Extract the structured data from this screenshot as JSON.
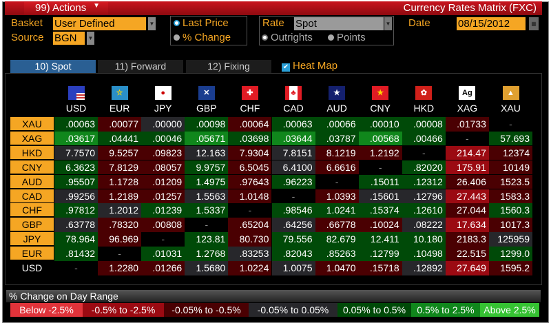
{
  "titlebar": {
    "actions": "99) Actions",
    "title": "Currency Rates Matrix (FXC)"
  },
  "controls": {
    "basket_label": "Basket",
    "basket_value": "User Defined",
    "source_label": "Source",
    "source_value": "BGN",
    "last_price": "Last Price",
    "pct_change": "% Change",
    "rate_label": "Rate",
    "rate_value": "Spot",
    "outrights": "Outrights",
    "points": "Points",
    "date_label": "Date",
    "date_value": "08/15/2012",
    "selected_display": "Last Price",
    "selected_quote": "Outrights"
  },
  "tabs": [
    {
      "label": "10) Spot",
      "active": true
    },
    {
      "label": "11) Forward",
      "active": false
    },
    {
      "label": "12) Fixing",
      "active": false
    }
  ],
  "heatmap": {
    "label": "Heat Map",
    "checked": true
  },
  "columns": [
    "USD",
    "EUR",
    "JPY",
    "GBP",
    "CHF",
    "CAD",
    "AUD",
    "CNY",
    "HKD",
    "XAG",
    "XAU"
  ],
  "flag_icons": [
    "us-flag-icon",
    "eu-flag-icon",
    "japan-flag-icon",
    "uk-flag-icon",
    "swiss-flag-icon",
    "canada-flag-icon",
    "australia-flag-icon",
    "china-flag-icon",
    "hongkong-flag-icon",
    "silver-ag-icon",
    "gold-icon"
  ],
  "rows": [
    {
      "code": "XAU",
      "values": [
        ".00063",
        ".00077",
        ".00000",
        ".00098",
        ".00064",
        ".00063",
        ".00066",
        ".00010",
        ".00008",
        ".01733",
        "-"
      ],
      "levels": [
        4,
        2,
        3,
        4,
        2,
        4,
        4,
        4,
        4,
        2,
        -1
      ]
    },
    {
      "code": "XAG",
      "values": [
        ".03617",
        ".04441",
        ".00046",
        ".05671",
        ".03698",
        ".03644",
        ".03787",
        ".00568",
        ".00466",
        "-",
        "57.693"
      ],
      "levels": [
        5,
        4,
        4,
        5,
        4,
        5,
        4,
        5,
        4,
        -1,
        4
      ]
    },
    {
      "code": "HKD",
      "values": [
        "7.7570",
        "9.5257",
        ".09823",
        "12.163",
        "7.9304",
        "7.8151",
        "8.1219",
        "1.2192",
        "-",
        "214.47",
        "12374"
      ],
      "levels": [
        3,
        2,
        2,
        3,
        2,
        3,
        2,
        2,
        -1,
        1,
        2
      ]
    },
    {
      "code": "CNY",
      "values": [
        "6.3623",
        "7.8129",
        ".08057",
        "9.9757",
        "6.5045",
        "6.4100",
        "6.6616",
        "-",
        ".82020",
        "175.91",
        "10149"
      ],
      "levels": [
        4,
        2,
        2,
        4,
        2,
        3,
        2,
        -1,
        4,
        1,
        2
      ]
    },
    {
      "code": "AUD",
      "values": [
        ".95507",
        "1.1728",
        ".01209",
        "1.4975",
        ".97643",
        ".96223",
        "-",
        ".15011",
        ".12312",
        "26.406",
        "1523.5"
      ],
      "levels": [
        4,
        2,
        2,
        4,
        2,
        4,
        -1,
        4,
        4,
        2,
        2
      ]
    },
    {
      "code": "CAD",
      "values": [
        ".99256",
        "1.2189",
        ".01257",
        "1.5563",
        "1.0148",
        "-",
        "1.0393",
        ".15601",
        ".12796",
        "27.443",
        "1583.3"
      ],
      "levels": [
        3,
        2,
        2,
        3,
        2,
        -1,
        2,
        3,
        3,
        1,
        2
      ]
    },
    {
      "code": "CHF",
      "values": [
        ".97812",
        "1.2012",
        ".01239",
        "1.5337",
        "-",
        ".98546",
        "1.0241",
        ".15374",
        ".12610",
        "27.044",
        "1560.3"
      ],
      "levels": [
        4,
        3,
        4,
        4,
        -1,
        4,
        4,
        4,
        4,
        2,
        4
      ]
    },
    {
      "code": "GBP",
      "values": [
        ".63778",
        ".78320",
        ".00808",
        "-",
        ".65204",
        ".64256",
        ".66778",
        ".10024",
        ".08222",
        "17.634",
        "1017.3"
      ],
      "levels": [
        3,
        2,
        2,
        -1,
        2,
        3,
        2,
        2,
        3,
        1,
        2
      ]
    },
    {
      "code": "JPY",
      "values": [
        "78.964",
        "96.969",
        "-",
        "123.81",
        "80.730",
        "79.556",
        "82.679",
        "12.411",
        "10.180",
        "2183.3",
        "125959"
      ],
      "levels": [
        4,
        2,
        -1,
        4,
        2,
        4,
        4,
        4,
        4,
        2,
        3
      ]
    },
    {
      "code": "EUR",
      "values": [
        ".81432",
        "-",
        ".01031",
        "1.2768",
        ".83253",
        ".82043",
        ".85263",
        ".12799",
        ".10498",
        "22.515",
        "1299.0"
      ],
      "levels": [
        4,
        -1,
        4,
        4,
        3,
        4,
        4,
        4,
        4,
        2,
        4
      ]
    },
    {
      "code": "USD",
      "values": [
        "-",
        "1.2280",
        ".01266",
        "1.5680",
        "1.0224",
        "1.0075",
        "1.0470",
        ".15718",
        ".12892",
        "27.649",
        "1595.2"
      ],
      "levels": [
        -1,
        2,
        2,
        3,
        2,
        3,
        2,
        2,
        3,
        1,
        2
      ]
    }
  ],
  "legend": {
    "title": "% Change on Day Range",
    "items": [
      {
        "label": "Below -2.5%",
        "color": "#e0333a"
      },
      {
        "label": "-0.5% to -2.5%",
        "color": "#9b0a12"
      },
      {
        "label": "-0.05% to -0.5%",
        "color": "#4a0002"
      },
      {
        "label": "-0.05% to 0.05%",
        "color": "#27272b"
      },
      {
        "label": "0.05% to 0.5%",
        "color": "#004a08"
      },
      {
        "label": "0.5% to 2.5%",
        "color": "#10871c"
      },
      {
        "label": "Above 2.5%",
        "color": "#35c232"
      }
    ]
  },
  "blank_color": "#000000"
}
